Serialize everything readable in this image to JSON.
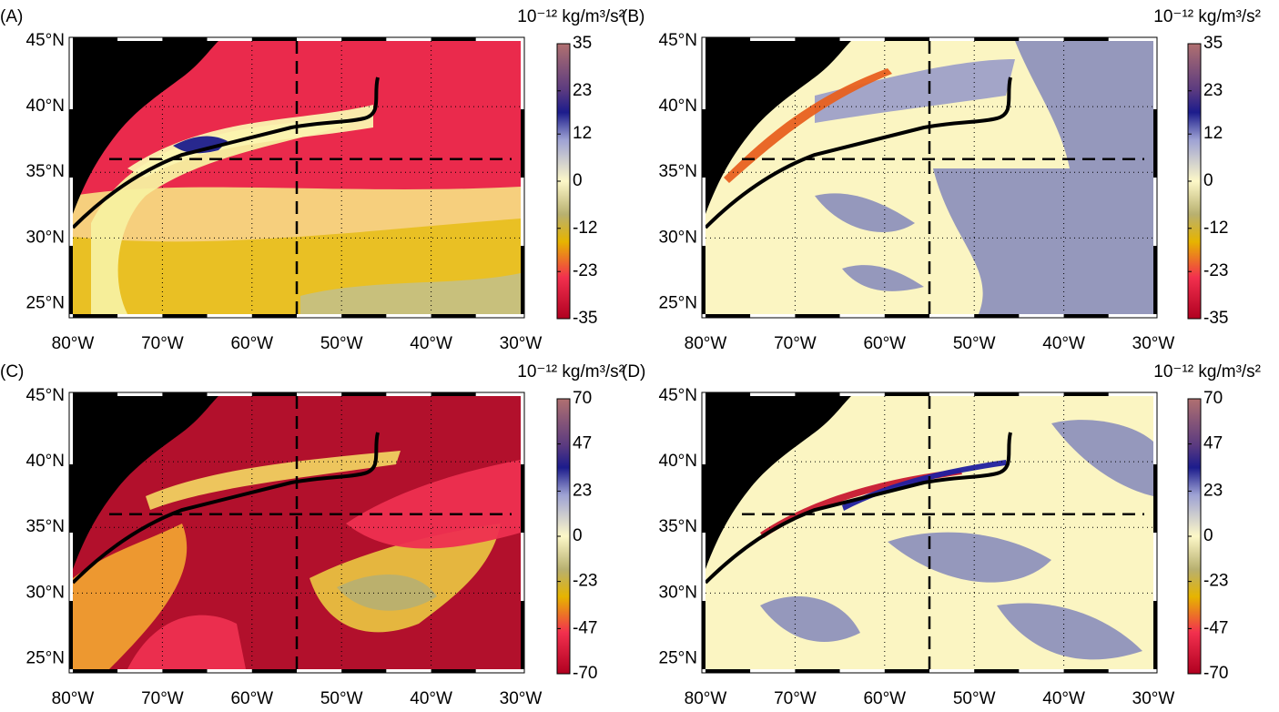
{
  "panels": [
    {
      "label": "(A)",
      "unit": "10⁻¹² kg/m³/s²",
      "xlim": [
        -80,
        -30
      ],
      "ylim": [
        24.2,
        45
      ],
      "xticks": [
        {
          "value": -80,
          "label": "80°W"
        },
        {
          "value": -70,
          "label": "70°W"
        },
        {
          "value": -60,
          "label": "60°W"
        },
        {
          "value": -50,
          "label": "50°W"
        },
        {
          "value": -40,
          "label": "40°W"
        },
        {
          "value": -30,
          "label": "30°W"
        }
      ],
      "yticks": [
        {
          "value": 25,
          "label": "25°N"
        },
        {
          "value": 30,
          "label": "30°N"
        },
        {
          "value": 35,
          "label": "35°N"
        },
        {
          "value": 40,
          "label": "40°N"
        },
        {
          "value": 45,
          "label": "45°N"
        }
      ],
      "dashed_lines": {
        "lon": -55,
        "lat": 36
      },
      "colorbar": {
        "lim": [
          -35,
          35
        ],
        "ticks": [
          35,
          23,
          12,
          0,
          -12,
          -23,
          -35
        ]
      }
    },
    {
      "label": "(B)",
      "unit": "10⁻¹² kg/m³/s²",
      "xlim": [
        -80,
        -30
      ],
      "ylim": [
        24.2,
        45
      ],
      "xticks": [
        {
          "value": -80,
          "label": "80°W"
        },
        {
          "value": -70,
          "label": "70°W"
        },
        {
          "value": -60,
          "label": "60°W"
        },
        {
          "value": -50,
          "label": "50°W"
        },
        {
          "value": -40,
          "label": "40°W"
        },
        {
          "value": -30,
          "label": "30°W"
        }
      ],
      "yticks": [
        {
          "value": 25,
          "label": "25°N"
        },
        {
          "value": 30,
          "label": "30°N"
        },
        {
          "value": 35,
          "label": "35°N"
        },
        {
          "value": 40,
          "label": "40°N"
        },
        {
          "value": 45,
          "label": "45°N"
        }
      ],
      "dashed_lines": {
        "lon": -55,
        "lat": 36
      },
      "colorbar": {
        "lim": [
          -35,
          35
        ],
        "ticks": [
          35,
          23,
          12,
          0,
          -12,
          -23,
          -35
        ]
      }
    },
    {
      "label": "(C)",
      "unit": "10⁻¹² kg/m³/s²",
      "xlim": [
        -80,
        -30
      ],
      "ylim": [
        24.2,
        45
      ],
      "xticks": [
        {
          "value": -80,
          "label": "80°W"
        },
        {
          "value": -70,
          "label": "70°W"
        },
        {
          "value": -60,
          "label": "60°W"
        },
        {
          "value": -50,
          "label": "50°W"
        },
        {
          "value": -40,
          "label": "40°W"
        },
        {
          "value": -30,
          "label": "30°W"
        }
      ],
      "yticks": [
        {
          "value": 25,
          "label": "25°N"
        },
        {
          "value": 30,
          "label": "30°N"
        },
        {
          "value": 35,
          "label": "35°N"
        },
        {
          "value": 40,
          "label": "40°N"
        },
        {
          "value": 45,
          "label": "45°N"
        }
      ],
      "dashed_lines": {
        "lon": -55,
        "lat": 36
      },
      "colorbar": {
        "lim": [
          -70,
          70
        ],
        "ticks": [
          70,
          47,
          23,
          0,
          -23,
          -47,
          -70
        ]
      }
    },
    {
      "label": "(D)",
      "unit": "10⁻¹² kg/m³/s²",
      "xlim": [
        -80,
        -30
      ],
      "ylim": [
        24.2,
        45
      ],
      "xticks": [
        {
          "value": -80,
          "label": "80°W"
        },
        {
          "value": -70,
          "label": "70°W"
        },
        {
          "value": -60,
          "label": "60°W"
        },
        {
          "value": -50,
          "label": "50°W"
        },
        {
          "value": -40,
          "label": "40°W"
        },
        {
          "value": -30,
          "label": "30°W"
        }
      ],
      "yticks": [
        {
          "value": 25,
          "label": "25°N"
        },
        {
          "value": 30,
          "label": "30°N"
        },
        {
          "value": 35,
          "label": "35°N"
        },
        {
          "value": 40,
          "label": "40°N"
        },
        {
          "value": 45,
          "label": "45°N"
        }
      ],
      "dashed_lines": {
        "lon": -55,
        "lat": 36
      },
      "colorbar": {
        "lim": [
          -70,
          70
        ],
        "ticks": [
          70,
          47,
          23,
          0,
          -23,
          -47,
          -70
        ]
      }
    }
  ]
}
